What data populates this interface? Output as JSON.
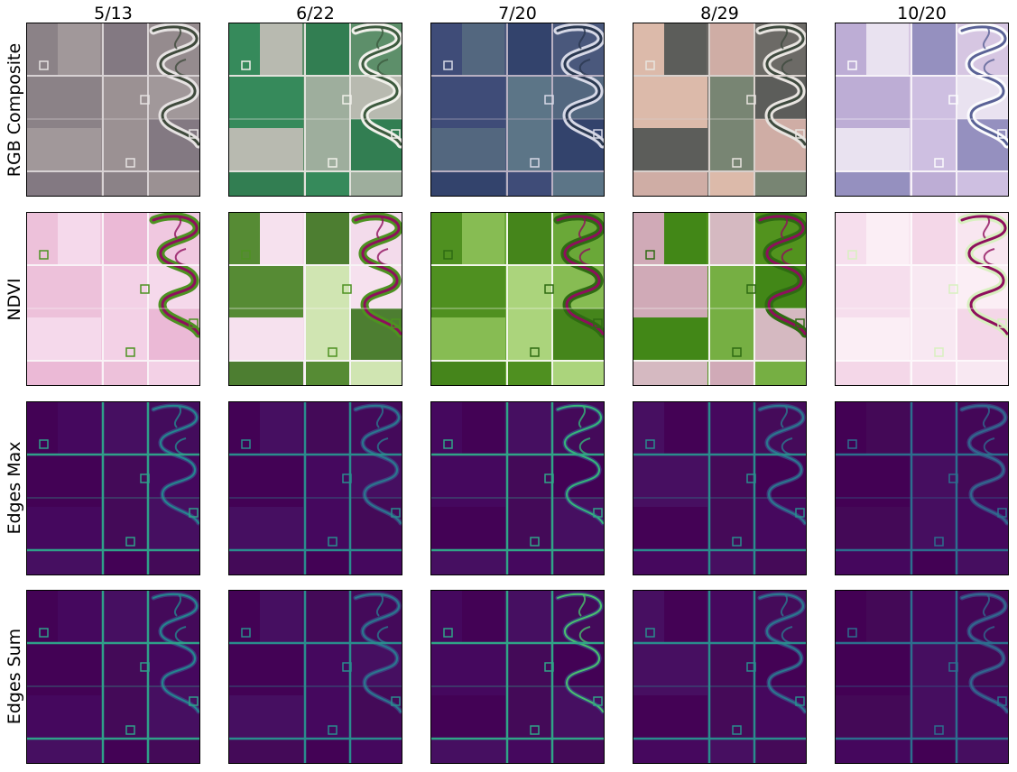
{
  "dates": [
    "5/13",
    "6/22",
    "7/20",
    "8/29",
    "10/20"
  ],
  "rows": [
    "RGB Composite",
    "NDVI",
    "Edges Max",
    "Edges Sum"
  ],
  "palettes": {
    "RGB Composite": [
      {
        "base": "#958b8e",
        "alt": [
          "#8a8086",
          "#a39a9c",
          "#807680",
          "#9c9294"
        ],
        "road": "#d8d2d4",
        "river": "#3f4a3c",
        "bank": "#e6e2e2"
      },
      {
        "base": "#5d8f6a",
        "alt": [
          "#2f8a58",
          "#c8c2bc",
          "#2a7b4e",
          "#a9b4a6"
        ],
        "road": "#e2e2dc",
        "river": "#3c5a3e",
        "bank": "#f0f0ea"
      },
      {
        "base": "#4a587c",
        "alt": [
          "#3d4a78",
          "#556a80",
          "#2f3f6a",
          "#5f7a8a"
        ],
        "road": "#b8b0c2",
        "river": "#2a3850",
        "bank": "#d6d8e6"
      },
      {
        "base": "#6c6a66",
        "alt": [
          "#f0c8b6",
          "#595a58",
          "#e0b8b0",
          "#7a8a76"
        ],
        "road": "#d8d0cc",
        "river": "#3e4a3e",
        "bank": "#e8e4e0"
      },
      {
        "base": "#d6c6e2",
        "alt": [
          "#b8a8d2",
          "#ece6f2",
          "#8a86b8",
          "#cdbde0"
        ],
        "road": "#f6f2f8",
        "river": "#5a6296",
        "bank": "#fbfbfd"
      }
    ],
    "NDVI": [
      {
        "base": "#f0c8e0",
        "alt": [
          "#ecbfd8",
          "#f6dcec",
          "#eab6d4",
          "#f3d2e6"
        ],
        "road": "#f9f2f6",
        "river": "#8e0f5c",
        "bank": "#4d9221"
      },
      {
        "base": "#f3dbeb",
        "alt": [
          "#3a7d14",
          "#f6e2ef",
          "#2f6d10",
          "#c9e6a8"
        ],
        "road": "#f7f4f5",
        "river": "#8e0f5c",
        "bank": "#4d9221"
      },
      {
        "base": "#6aa838",
        "alt": [
          "#4a8c1c",
          "#8cc058",
          "#3e7f16",
          "#b6dc88"
        ],
        "road": "#f2f6ea",
        "river": "#8e0f5c",
        "bank": "#2e6b12"
      },
      {
        "base": "#52931e",
        "alt": [
          "#e6aed2",
          "#3f8516",
          "#ecc0de",
          "#7cb44a"
        ],
        "road": "#f4f4f0",
        "river": "#8e0f5c",
        "bank": "#2e6b12"
      },
      {
        "base": "#f8e6f0",
        "alt": [
          "#f6dcec",
          "#fbeff6",
          "#f3d4e6",
          "#f8e8f2"
        ],
        "road": "#fdf8fb",
        "river": "#8e0f5c",
        "bank": "#d8f0c0"
      }
    ],
    "Edges Max": [
      {
        "base": "#430c5c",
        "alt": [
          "#440154",
          "#46085e",
          "#471062",
          "#450a58"
        ],
        "road": "#2fa089",
        "river": "#24878e",
        "bank": "#3b528b"
      },
      {
        "base": "#440a5a",
        "alt": [
          "#440154",
          "#471062",
          "#450a58",
          "#46085e"
        ],
        "road": "#2a8c8d",
        "river": "#2a788e",
        "bank": "#3b528b"
      },
      {
        "base": "#440a5a",
        "alt": [
          "#46085e",
          "#440154",
          "#471062",
          "#450a58"
        ],
        "road": "#30a487",
        "river": "#35b779",
        "bank": "#3b528b"
      },
      {
        "base": "#450b5a",
        "alt": [
          "#471062",
          "#440154",
          "#46085e",
          "#450a58"
        ],
        "road": "#2a8c8d",
        "river": "#2a788e",
        "bank": "#3b528b"
      },
      {
        "base": "#440758",
        "alt": [
          "#440154",
          "#450a58",
          "#46085e",
          "#471062"
        ],
        "road": "#2c6e8e",
        "river": "#31688e",
        "bank": "#3b528b"
      }
    ],
    "Edges Sum": [
      {
        "base": "#440a5a",
        "alt": [
          "#440154",
          "#46085e",
          "#471062",
          "#450a58"
        ],
        "road": "#2fa089",
        "river": "#24878e",
        "bank": "#3b528b"
      },
      {
        "base": "#440a5a",
        "alt": [
          "#440154",
          "#471062",
          "#450a58",
          "#46085e"
        ],
        "road": "#2a8c8d",
        "river": "#2a788e",
        "bank": "#3b528b"
      },
      {
        "base": "#440a5a",
        "alt": [
          "#46085e",
          "#440154",
          "#471062",
          "#450a58"
        ],
        "road": "#30a487",
        "river": "#4ac16d",
        "bank": "#3b528b"
      },
      {
        "base": "#450b5a",
        "alt": [
          "#471062",
          "#440154",
          "#46085e",
          "#450a58"
        ],
        "road": "#2a8c8d",
        "river": "#2a788e",
        "bank": "#3b528b"
      },
      {
        "base": "#440758",
        "alt": [
          "#440154",
          "#450a58",
          "#46085e",
          "#471062"
        ],
        "road": "#2c6e8e",
        "river": "#31688e",
        "bank": "#3b528b"
      }
    ]
  }
}
